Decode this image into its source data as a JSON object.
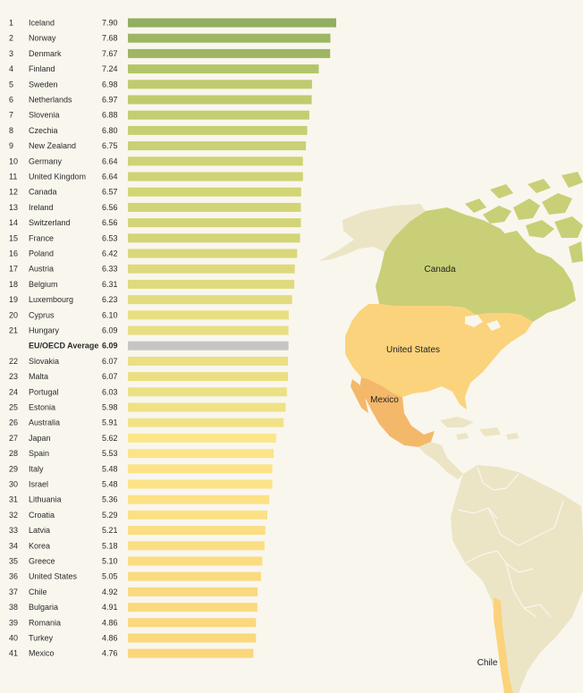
{
  "chart_data": {
    "type": "bar",
    "orientation": "horizontal",
    "average_label": "EU/OECD Average",
    "average_value": 6.09,
    "average_color": "#c5c5c5",
    "rows": [
      {
        "rank": "1",
        "country": "Iceland",
        "value": 7.9
      },
      {
        "rank": "2",
        "country": "Norway",
        "value": 7.68
      },
      {
        "rank": "3",
        "country": "Denmark",
        "value": 7.67
      },
      {
        "rank": "4",
        "country": "Finland",
        "value": 7.24
      },
      {
        "rank": "5",
        "country": "Sweden",
        "value": 6.98
      },
      {
        "rank": "6",
        "country": "Netherlands",
        "value": 6.97
      },
      {
        "rank": "7",
        "country": "Slovenia",
        "value": 6.88
      },
      {
        "rank": "8",
        "country": "Czechia",
        "value": 6.8
      },
      {
        "rank": "9",
        "country": "New Zealand",
        "value": 6.75
      },
      {
        "rank": "10",
        "country": "Germany",
        "value": 6.64
      },
      {
        "rank": "11",
        "country": "United Kingdom",
        "value": 6.64
      },
      {
        "rank": "12",
        "country": "Canada",
        "value": 6.57
      },
      {
        "rank": "13",
        "country": "Ireland",
        "value": 6.56
      },
      {
        "rank": "14",
        "country": "Switzerland",
        "value": 6.56
      },
      {
        "rank": "15",
        "country": "France",
        "value": 6.53
      },
      {
        "rank": "16",
        "country": "Poland",
        "value": 6.42
      },
      {
        "rank": "17",
        "country": "Austria",
        "value": 6.33
      },
      {
        "rank": "18",
        "country": "Belgium",
        "value": 6.31
      },
      {
        "rank": "19",
        "country": "Luxembourg",
        "value": 6.23
      },
      {
        "rank": "20",
        "country": "Cyprus",
        "value": 6.1
      },
      {
        "rank": "21",
        "country": "Hungary",
        "value": 6.09
      },
      {
        "rank": "",
        "country": "EU/OECD Average",
        "value": 6.09,
        "is_average": true
      },
      {
        "rank": "22",
        "country": "Slovakia",
        "value": 6.07
      },
      {
        "rank": "23",
        "country": "Malta",
        "value": 6.07
      },
      {
        "rank": "24",
        "country": "Portugal",
        "value": 6.03
      },
      {
        "rank": "25",
        "country": "Estonia",
        "value": 5.98
      },
      {
        "rank": "26",
        "country": "Australia",
        "value": 5.91
      },
      {
        "rank": "27",
        "country": "Japan",
        "value": 5.62
      },
      {
        "rank": "28",
        "country": "Spain",
        "value": 5.53
      },
      {
        "rank": "29",
        "country": "Italy",
        "value": 5.48
      },
      {
        "rank": "30",
        "country": "Israel",
        "value": 5.48
      },
      {
        "rank": "31",
        "country": "Lithuania",
        "value": 5.36
      },
      {
        "rank": "32",
        "country": "Croatia",
        "value": 5.29
      },
      {
        "rank": "33",
        "country": "Latvia",
        "value": 5.21
      },
      {
        "rank": "34",
        "country": "Korea",
        "value": 5.18
      },
      {
        "rank": "35",
        "country": "Greece",
        "value": 5.1
      },
      {
        "rank": "36",
        "country": "United States",
        "value": 5.05
      },
      {
        "rank": "37",
        "country": "Chile",
        "value": 4.92
      },
      {
        "rank": "38",
        "country": "Bulgaria",
        "value": 4.91
      },
      {
        "rank": "39",
        "country": "Romania",
        "value": 4.86
      },
      {
        "rank": "40",
        "country": "Turkey",
        "value": 4.86
      },
      {
        "rank": "41",
        "country": "Mexico",
        "value": 4.76
      }
    ]
  },
  "map": {
    "labels": {
      "canada": "Canada",
      "united_states": "United States",
      "mexico": "Mexico",
      "chile": "Chile"
    },
    "colors": {
      "canada": "#c9cf76",
      "united_states": "#fbd37c",
      "mexico": "#f4b86a",
      "chile": "#fbd37c",
      "other_land": "#ebe5c6",
      "border": "#f9f6ee"
    }
  }
}
